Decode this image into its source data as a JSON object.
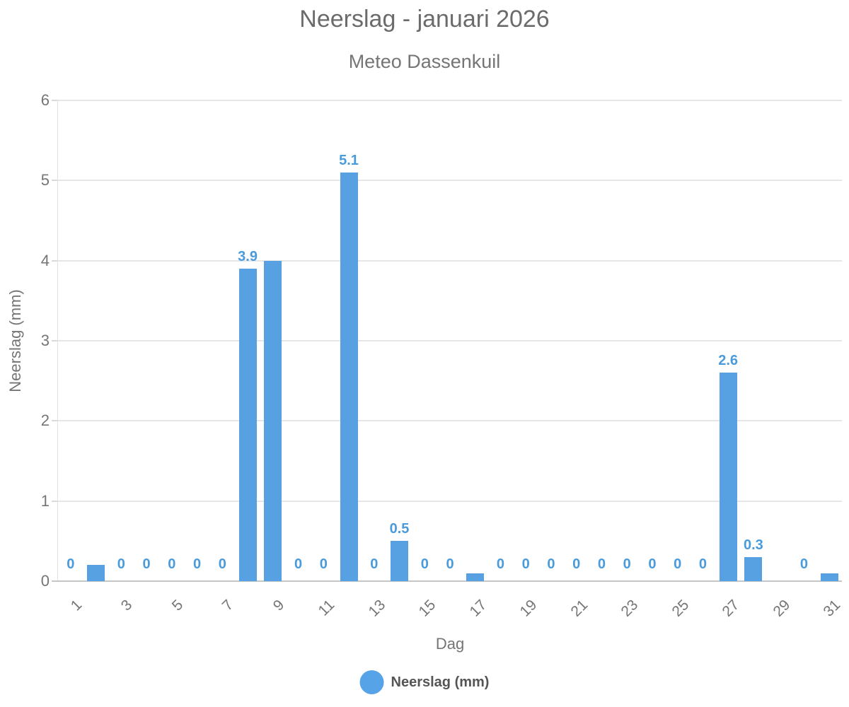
{
  "chart_data": {
    "type": "bar",
    "title": "Neerslag - januari 2026",
    "subtitle": "Meteo Dassenkuil",
    "xlabel": "Dag",
    "ylabel": "Neerslag (mm)",
    "legend": {
      "label": "Neerslag (mm)"
    },
    "ylim": [
      0,
      6
    ],
    "yticks": [
      0,
      1,
      2,
      3,
      4,
      5,
      6
    ],
    "xticks": [
      1,
      3,
      5,
      7,
      9,
      11,
      13,
      15,
      17,
      19,
      21,
      23,
      25,
      27,
      29,
      31
    ],
    "days": [
      1,
      2,
      3,
      4,
      5,
      6,
      7,
      8,
      9,
      10,
      11,
      12,
      13,
      14,
      15,
      16,
      17,
      18,
      19,
      20,
      21,
      22,
      23,
      24,
      25,
      26,
      27,
      28,
      29,
      30,
      31
    ],
    "values": [
      0,
      0.2,
      0,
      0,
      0,
      0,
      0,
      3.9,
      4,
      0,
      0,
      5.1,
      0,
      0.5,
      0,
      0,
      0.1,
      0,
      0,
      0,
      0,
      0,
      0,
      0,
      0,
      0,
      2.6,
      0.3,
      null,
      0,
      0.1
    ],
    "data_labels": [
      "0",
      null,
      "0",
      "0",
      "0",
      "0",
      "0",
      "3.9",
      null,
      "0",
      "0",
      "5.1",
      "0",
      "0.5",
      "0",
      "0",
      null,
      "0",
      "0",
      "0",
      "0",
      "0",
      "0",
      "0",
      "0",
      "0",
      "2.6",
      "0.3",
      null,
      "0",
      null
    ],
    "grid": "on",
    "legend_position": "bottom-center",
    "colors": {
      "bar": "#57A1E2",
      "data_label": "#4A9BDB",
      "legend_marker": "#57A3E8",
      "legend_text": "#555555",
      "title_text": "#6B6B6B",
      "subtitle_text": "#757575",
      "axis_text": "#757575",
      "gridline": "#E6E6E6",
      "tick_mark": "#DADADA",
      "axis_line": "#C6C6C6",
      "y_axis_line": "#E2E2E2"
    }
  }
}
